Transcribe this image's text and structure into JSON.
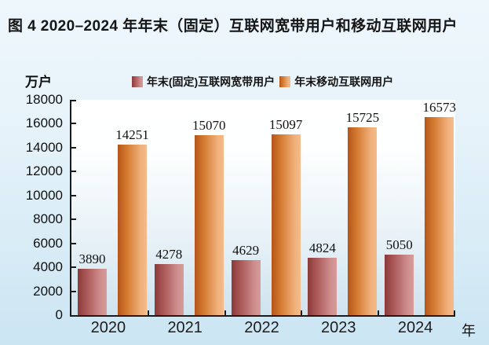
{
  "title": "图 4  2020–2024 年年末（固定）互联网宽带用户和移动互联网用户",
  "chart_data": {
    "type": "bar",
    "title": "图 4  2020–2024 年年末（固定）互联网宽带用户和移动互联网用户",
    "unit_label": "万户",
    "x_axis_suffix": "年",
    "categories": [
      "2020",
      "2021",
      "2022",
      "2023",
      "2024"
    ],
    "series": [
      {
        "name": "年末(固定)互联网宽带用户",
        "values": [
          3890,
          4278,
          4629,
          4824,
          5050
        ],
        "gradient": [
          "#8a3a3a",
          "#aa5757",
          "#cf8f8f",
          "#d79b9a"
        ]
      },
      {
        "name": "年末移动互联网用户",
        "values": [
          14251,
          15070,
          15097,
          15725,
          16573
        ],
        "gradient": [
          "#b4551b",
          "#d3792e",
          "#f0b17c",
          "#f4bb8a"
        ]
      }
    ],
    "ylim": [
      0,
      18000
    ],
    "yticks": [
      0,
      2000,
      4000,
      6000,
      8000,
      10000,
      12000,
      14000,
      16000,
      18000
    ],
    "legend_position": "top-center",
    "grid": false,
    "data_labels": true
  },
  "colors": {
    "axis": "#1b1b1b",
    "background_top": "#eef7fc",
    "background_bottom": "#cbe5f3",
    "plot_top": "#ffffff",
    "plot_bottom": "#cfe3ee"
  }
}
